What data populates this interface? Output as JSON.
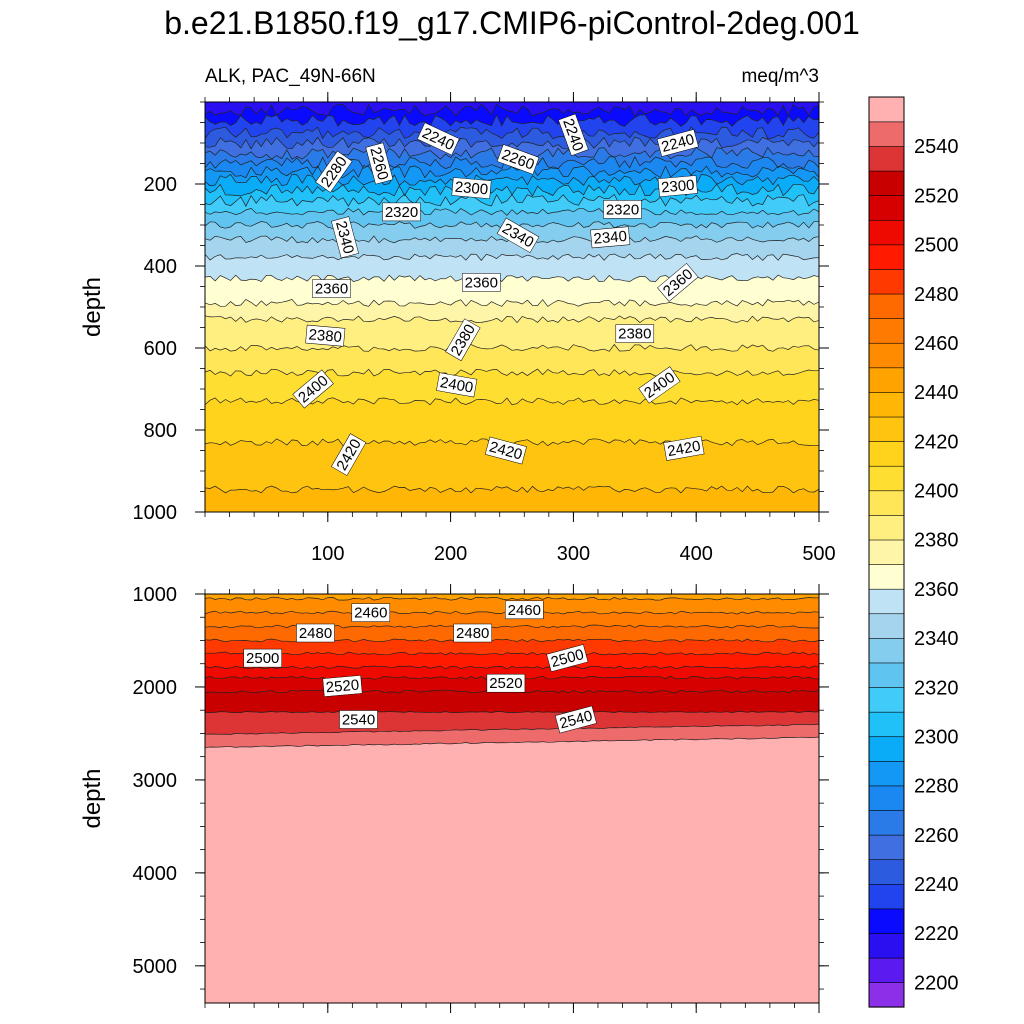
{
  "chart_data": {
    "type": "contour",
    "title": "b.e21.B1850.f19_g17.CMIP6-piControl-2deg.001",
    "left_subtitle": "ALK, PAC_49N-66N",
    "right_subtitle": "meq/m^3",
    "xlim": [
      0,
      500
    ],
    "x_ticks": [
      100,
      200,
      300,
      400,
      500
    ],
    "x_tick_labels": [
      "100",
      "200",
      "300",
      "400",
      "500"
    ],
    "panels": [
      {
        "name": "upper",
        "ylabel": "depth",
        "ylim": [
          0,
          1000
        ],
        "y_ticks": [
          200,
          400,
          600,
          800,
          1000
        ],
        "y_tick_labels": [
          "200",
          "400",
          "600",
          "800",
          "1000"
        ],
        "contour_depths": [
          {
            "level": 2220,
            "depth": 20
          },
          {
            "level": 2230,
            "depth": 45
          },
          {
            "level": 2240,
            "depth": 75
          },
          {
            "level": 2250,
            "depth": 100
          },
          {
            "level": 2260,
            "depth": 125
          },
          {
            "level": 2270,
            "depth": 148
          },
          {
            "level": 2280,
            "depth": 170
          },
          {
            "level": 2290,
            "depth": 190
          },
          {
            "level": 2300,
            "depth": 215
          },
          {
            "level": 2310,
            "depth": 240
          },
          {
            "level": 2320,
            "depth": 268
          },
          {
            "level": 2330,
            "depth": 300
          },
          {
            "level": 2340,
            "depth": 335
          },
          {
            "level": 2350,
            "depth": 378
          },
          {
            "level": 2360,
            "depth": 430
          },
          {
            "level": 2370,
            "depth": 490
          },
          {
            "level": 2380,
            "depth": 530
          },
          {
            "level": 2390,
            "depth": 600
          },
          {
            "level": 2400,
            "depth": 660
          },
          {
            "level": 2410,
            "depth": 730
          },
          {
            "level": 2420,
            "depth": 830
          },
          {
            "level": 2430,
            "depth": 945
          }
        ],
        "contour_labels": [
          {
            "text": "2240",
            "x": 190,
            "depth": 90,
            "angle": 25
          },
          {
            "text": "2240",
            "x": 300,
            "depth": 80,
            "angle": 70
          },
          {
            "text": "2240",
            "x": 385,
            "depth": 100,
            "angle": -15
          },
          {
            "text": "2260",
            "x": 142,
            "depth": 150,
            "angle": 75
          },
          {
            "text": "2260",
            "x": 255,
            "depth": 140,
            "angle": 20
          },
          {
            "text": "2280",
            "x": 105,
            "depth": 170,
            "angle": -55
          },
          {
            "text": "2300",
            "x": 217,
            "depth": 210,
            "angle": 5
          },
          {
            "text": "2300",
            "x": 385,
            "depth": 205,
            "angle": -5
          },
          {
            "text": "2320",
            "x": 160,
            "depth": 268,
            "angle": 0
          },
          {
            "text": "2320",
            "x": 340,
            "depth": 262,
            "angle": 0
          },
          {
            "text": "2340",
            "x": 114,
            "depth": 330,
            "angle": 75
          },
          {
            "text": "2340",
            "x": 255,
            "depth": 325,
            "angle": 30
          },
          {
            "text": "2340",
            "x": 330,
            "depth": 330,
            "angle": -5
          },
          {
            "text": "2360",
            "x": 103,
            "depth": 455,
            "angle": 0
          },
          {
            "text": "2360",
            "x": 225,
            "depth": 440,
            "angle": 0
          },
          {
            "text": "2360",
            "x": 385,
            "depth": 440,
            "angle": -40
          },
          {
            "text": "2380",
            "x": 98,
            "depth": 570,
            "angle": 5
          },
          {
            "text": "2380",
            "x": 210,
            "depth": 580,
            "angle": -60
          },
          {
            "text": "2380",
            "x": 350,
            "depth": 565,
            "angle": 0
          },
          {
            "text": "2400",
            "x": 88,
            "depth": 700,
            "angle": -40
          },
          {
            "text": "2400",
            "x": 205,
            "depth": 690,
            "angle": 10
          },
          {
            "text": "2400",
            "x": 370,
            "depth": 690,
            "angle": -35
          },
          {
            "text": "2420",
            "x": 117,
            "depth": 860,
            "angle": -60
          },
          {
            "text": "2420",
            "x": 245,
            "depth": 850,
            "angle": 15
          },
          {
            "text": "2420",
            "x": 390,
            "depth": 845,
            "angle": -10
          }
        ]
      },
      {
        "name": "lower",
        "ylabel": "depth",
        "ylim": [
          1000,
          5400
        ],
        "y_ticks": [
          1000,
          2000,
          3000,
          4000,
          5000
        ],
        "y_tick_labels": [
          "1000",
          "2000",
          "3000",
          "4000",
          "5000"
        ],
        "contour_depths": [
          {
            "level": 2450,
            "depth": 1050
          },
          {
            "level": 2460,
            "depth": 1200
          },
          {
            "level": 2470,
            "depth": 1350
          },
          {
            "level": 2480,
            "depth": 1500
          },
          {
            "level": 2490,
            "depth": 1640
          },
          {
            "level": 2500,
            "depth": 1790
          },
          {
            "level": 2510,
            "depth": 1900
          },
          {
            "level": 2520,
            "depth": 2050
          },
          {
            "level": 2530,
            "depth": 2270
          },
          {
            "level": 2540,
            "depth": 2510
          },
          {
            "level": 2550,
            "depth": 2650
          }
        ],
        "contour_labels": [
          {
            "text": "2460",
            "x": 135,
            "depth": 1200,
            "angle": 0
          },
          {
            "text": "2460",
            "x": 260,
            "depth": 1170,
            "angle": 0
          },
          {
            "text": "2480",
            "x": 90,
            "depth": 1420,
            "angle": 0
          },
          {
            "text": "2480",
            "x": 218,
            "depth": 1420,
            "angle": 0
          },
          {
            "text": "2500",
            "x": 47,
            "depth": 1690,
            "angle": 0
          },
          {
            "text": "2500",
            "x": 295,
            "depth": 1690,
            "angle": -15
          },
          {
            "text": "2520",
            "x": 112,
            "depth": 1990,
            "angle": -5
          },
          {
            "text": "2520",
            "x": 245,
            "depth": 1960,
            "angle": 0
          },
          {
            "text": "2540",
            "x": 125,
            "depth": 2350,
            "angle": 0
          },
          {
            "text": "2540",
            "x": 302,
            "depth": 2350,
            "angle": -15
          }
        ]
      }
    ],
    "colorbar": {
      "levels": [
        2200,
        2210,
        2220,
        2230,
        2240,
        2250,
        2260,
        2270,
        2280,
        2290,
        2300,
        2310,
        2320,
        2330,
        2340,
        2350,
        2360,
        2370,
        2380,
        2390,
        2400,
        2410,
        2420,
        2430,
        2440,
        2450,
        2460,
        2470,
        2480,
        2490,
        2500,
        2510,
        2520,
        2530,
        2540,
        2550
      ],
      "tick_labels": [
        "2200",
        "2220",
        "2240",
        "2260",
        "2280",
        "2300",
        "2320",
        "2340",
        "2360",
        "2380",
        "2400",
        "2420",
        "2440",
        "2460",
        "2480",
        "2500",
        "2520",
        "2540"
      ],
      "colors": [
        "#8B2FE8",
        "#5A1AF0",
        "#2A10F0",
        "#0A0AFF",
        "#2244EE",
        "#2D5BE0",
        "#3F6FE0",
        "#2A7AE8",
        "#1A88F0",
        "#1498F5",
        "#0AACF8",
        "#20C0F8",
        "#40CBF8",
        "#60C4F0",
        "#85CDEE",
        "#A5D5EE",
        "#BFE2F4",
        "#FFFFD2",
        "#FFF5A8",
        "#FFEE80",
        "#FFE658",
        "#FFDE32",
        "#FFD21C",
        "#FFC40F",
        "#FFB605",
        "#FFA300",
        "#FF8C00",
        "#FF7A00",
        "#FF6A00",
        "#FF3A00",
        "#FF1A00",
        "#EE0A00",
        "#D60000",
        "#C80000",
        "#DD3535",
        "#EE6B6B",
        "#FFB0B0"
      ]
    }
  }
}
